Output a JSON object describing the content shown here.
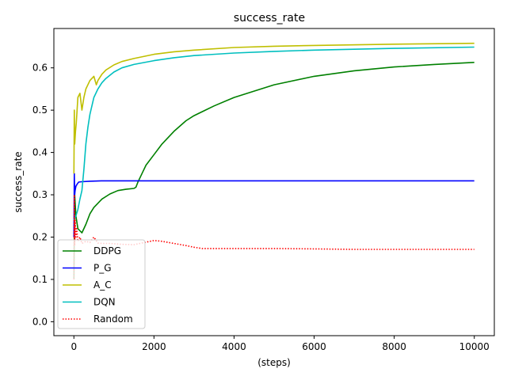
{
  "chart_data": {
    "type": "line",
    "title": "success_rate",
    "xlabel": "(steps)",
    "ylabel": "success_rate",
    "xlim": [
      -500,
      10500
    ],
    "ylim": [
      -0.033,
      0.693
    ],
    "xticks": [
      0,
      2000,
      4000,
      6000,
      8000,
      10000
    ],
    "yticks": [
      0.0,
      0.1,
      0.2,
      0.3,
      0.4,
      0.5,
      0.6
    ],
    "xtick_labels": [
      "0",
      "2000",
      "4000",
      "6000",
      "8000",
      "10000"
    ],
    "ytick_labels": [
      "0.0",
      "0.1",
      "0.2",
      "0.3",
      "0.4",
      "0.5",
      "0.6"
    ],
    "grid": false,
    "legend_position": "lower-left",
    "series": [
      {
        "name": "DDPG",
        "color": "#008000",
        "style": "solid",
        "x": [
          0,
          20,
          50,
          100,
          150,
          200,
          300,
          400,
          500,
          700,
          900,
          1100,
          1300,
          1500,
          1550,
          1600,
          1700,
          1800,
          2000,
          2200,
          2500,
          2800,
          3000,
          3500,
          4000,
          4500,
          5000,
          6000,
          7000,
          8000,
          9000,
          10000
        ],
        "values": [
          0.1,
          0.3,
          0.25,
          0.22,
          0.215,
          0.21,
          0.23,
          0.255,
          0.27,
          0.29,
          0.302,
          0.31,
          0.313,
          0.315,
          0.318,
          0.33,
          0.35,
          0.37,
          0.395,
          0.42,
          0.45,
          0.475,
          0.487,
          0.51,
          0.53,
          0.545,
          0.56,
          0.58,
          0.593,
          0.602,
          0.608,
          0.613
        ]
      },
      {
        "name": "P_G",
        "color": "#0000ff",
        "style": "solid",
        "x": [
          0,
          10,
          20,
          30,
          50,
          80,
          120,
          200,
          400,
          700,
          1000,
          3000,
          10000
        ],
        "values": [
          0.2,
          0.35,
          0.3,
          0.31,
          0.32,
          0.325,
          0.33,
          0.331,
          0.332,
          0.333,
          0.333,
          0.333,
          0.333
        ]
      },
      {
        "name": "A_C",
        "color": "#bfbf00",
        "style": "solid",
        "x": [
          0,
          10,
          20,
          40,
          60,
          100,
          150,
          200,
          250,
          300,
          400,
          500,
          560,
          600,
          700,
          800,
          1000,
          1200,
          1500,
          2000,
          2500,
          3000,
          4000,
          5000,
          6000,
          8000,
          10000
        ],
        "values": [
          0.35,
          0.5,
          0.42,
          0.45,
          0.47,
          0.53,
          0.54,
          0.5,
          0.53,
          0.55,
          0.57,
          0.58,
          0.56,
          0.57,
          0.585,
          0.595,
          0.607,
          0.615,
          0.622,
          0.632,
          0.638,
          0.642,
          0.648,
          0.651,
          0.653,
          0.656,
          0.658
        ]
      },
      {
        "name": "DQN",
        "color": "#00bfbf",
        "style": "solid",
        "x": [
          0,
          50,
          100,
          150,
          200,
          250,
          300,
          350,
          400,
          500,
          600,
          700,
          800,
          1000,
          1200,
          1500,
          2000,
          2500,
          3000,
          4000,
          5000,
          6000,
          8000,
          10000
        ],
        "values": [
          0.24,
          0.25,
          0.265,
          0.29,
          0.31,
          0.36,
          0.42,
          0.46,
          0.49,
          0.53,
          0.55,
          0.565,
          0.575,
          0.59,
          0.6,
          0.608,
          0.617,
          0.624,
          0.629,
          0.635,
          0.639,
          0.642,
          0.646,
          0.649
        ]
      },
      {
        "name": "Random",
        "color": "#ff0000",
        "style": "dotted",
        "x": [
          0,
          10,
          20,
          30,
          50,
          70,
          100,
          150,
          200,
          300,
          400,
          500,
          600,
          700,
          900,
          1200,
          1500,
          1800,
          2000,
          2200,
          2500,
          2800,
          3000,
          3200,
          3500,
          4000,
          5000,
          6000,
          7000,
          8000,
          9000,
          10000
        ],
        "values": [
          0.1,
          0.3,
          0.18,
          0.24,
          0.2,
          0.22,
          0.19,
          0.2,
          0.185,
          0.19,
          0.187,
          0.2,
          0.186,
          0.185,
          0.185,
          0.183,
          0.182,
          0.188,
          0.192,
          0.19,
          0.185,
          0.18,
          0.176,
          0.173,
          0.173,
          0.173,
          0.173,
          0.172,
          0.171,
          0.171,
          0.171,
          0.171
        ]
      }
    ]
  }
}
